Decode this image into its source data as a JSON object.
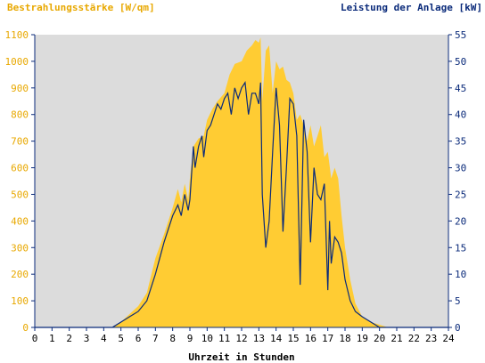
{
  "chart_data": {
    "type": "area",
    "left_axis_title": "Bestrahlungsstärke [W/qm]",
    "right_axis_title": "Leistung der Anlage [kW]",
    "xlabel": "Uhrzeit in Stunden",
    "x_ticks": [
      "0",
      "1",
      "2",
      "3",
      "4",
      "5",
      "6",
      "7",
      "8",
      "9",
      "10",
      "11",
      "12",
      "13",
      "14",
      "15",
      "16",
      "17",
      "18",
      "19",
      "20",
      "21",
      "22",
      "23",
      "24"
    ],
    "xlim": [
      0,
      24
    ],
    "y_left_ticks": [
      "0",
      "100",
      "200",
      "300",
      "400",
      "500",
      "600",
      "700",
      "800",
      "900",
      "1000",
      "1100"
    ],
    "y_left_lim": [
      0,
      1100
    ],
    "y_right_ticks": [
      "0",
      "5",
      "10",
      "15",
      "20",
      "25",
      "30",
      "35",
      "40",
      "45",
      "50",
      "55"
    ],
    "y_right_lim": [
      0,
      55
    ],
    "grid": false,
    "colors": {
      "plot_background": "#dcdcdc",
      "irradiance_fill": "#ffcc33",
      "power_line": "#0a2a7a",
      "left_axis_text": "#e8a800",
      "right_axis_text": "#0a2a7a",
      "axis": "#0a2a7a"
    },
    "series": [
      {
        "axis": "left",
        "style": "area",
        "x": [
          0,
          4.5,
          5,
          5.5,
          6,
          6.5,
          7,
          7.5,
          8,
          8.3,
          8.5,
          8.7,
          8.9,
          9,
          9.2,
          9.5,
          9.8,
          10,
          10.3,
          10.6,
          11,
          11.3,
          11.6,
          12,
          12.3,
          12.6,
          12.8,
          13,
          13.1,
          13.2,
          13.4,
          13.6,
          13.8,
          14,
          14.2,
          14.4,
          14.6,
          14.8,
          15,
          15.2,
          15.4,
          15.6,
          15.8,
          16,
          16.2,
          16.4,
          16.6,
          16.8,
          17,
          17.2,
          17.4,
          17.6,
          17.8,
          18,
          18.3,
          18.6,
          19,
          19.5,
          20,
          20.5,
          24
        ],
        "y": [
          0,
          0,
          20,
          50,
          80,
          130,
          260,
          350,
          450,
          520,
          470,
          540,
          480,
          560,
          680,
          710,
          720,
          780,
          820,
          850,
          880,
          950,
          990,
          1000,
          1040,
          1060,
          1080,
          1070,
          1090,
          850,
          1040,
          1060,
          880,
          1000,
          970,
          980,
          930,
          920,
          880,
          780,
          800,
          760,
          700,
          760,
          680,
          720,
          760,
          640,
          660,
          560,
          600,
          560,
          420,
          300,
          180,
          90,
          40,
          20,
          10,
          0,
          0
        ]
      },
      {
        "axis": "right",
        "style": "line",
        "x": [
          0,
          4.5,
          5,
          5.5,
          6,
          6.5,
          7,
          7.5,
          8,
          8.3,
          8.5,
          8.7,
          8.9,
          9,
          9.2,
          9.3,
          9.5,
          9.7,
          9.8,
          10,
          10.2,
          10.4,
          10.6,
          10.8,
          11,
          11.2,
          11.4,
          11.6,
          11.8,
          12,
          12.2,
          12.4,
          12.6,
          12.8,
          13,
          13.1,
          13.2,
          13.4,
          13.6,
          13.8,
          14,
          14.2,
          14.4,
          14.6,
          14.8,
          15,
          15.2,
          15.4,
          15.6,
          15.8,
          16,
          16.2,
          16.4,
          16.6,
          16.8,
          17,
          17.1,
          17.2,
          17.4,
          17.6,
          17.8,
          18,
          18.3,
          18.6,
          19,
          19.5,
          20,
          20.5,
          24
        ],
        "y": [
          0,
          0,
          1,
          2,
          3,
          5,
          10,
          16,
          21,
          23,
          21,
          25,
          22,
          24,
          34,
          30,
          34,
          36,
          32,
          37,
          38,
          40,
          42,
          41,
          43,
          44,
          40,
          45,
          43,
          45,
          46,
          40,
          44,
          44,
          42,
          46,
          25,
          15,
          20,
          33,
          45,
          38,
          18,
          30,
          43,
          42,
          36,
          8,
          39,
          33,
          16,
          30,
          25,
          24,
          27,
          7,
          20,
          12,
          17,
          16,
          14,
          9,
          5,
          3,
          2,
          1,
          0,
          0,
          0
        ]
      }
    ]
  }
}
